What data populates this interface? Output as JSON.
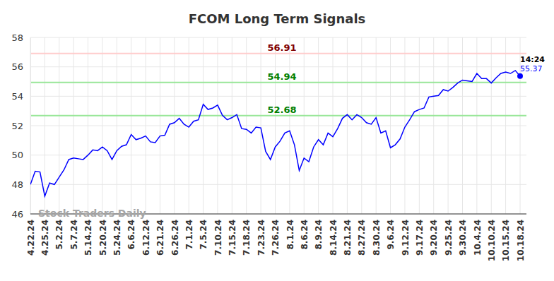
{
  "chart_data": {
    "type": "line",
    "title": "FCOM Long Term Signals",
    "categories": [
      "4.22.24",
      null,
      null,
      "4.25.24",
      null,
      null,
      "5.2.24",
      null,
      null,
      "5.7.24",
      null,
      null,
      "5.14.24",
      null,
      null,
      "5.20.24",
      null,
      null,
      "5.24.24",
      null,
      null,
      "6.6.24",
      null,
      null,
      "6.12.24",
      null,
      null,
      "6.21.24",
      null,
      null,
      "6.26.24",
      null,
      null,
      "7.1.24",
      null,
      null,
      "7.5.24",
      null,
      null,
      "7.10.24",
      null,
      null,
      "7.15.24",
      null,
      null,
      "7.18.24",
      null,
      null,
      "7.23.24",
      null,
      null,
      "7.26.24",
      null,
      null,
      "8.1.24",
      null,
      null,
      "8.6.24",
      null,
      null,
      "8.9.24",
      null,
      null,
      "8.14.24",
      null,
      null,
      "8.21.24",
      null,
      null,
      "8.27.24",
      null,
      null,
      "8.30.24",
      null,
      null,
      "9.6.24",
      null,
      null,
      "9.12.24",
      null,
      null,
      "9.17.24",
      null,
      null,
      "9.20.24",
      null,
      null,
      "9.25.24",
      null,
      null,
      "9.30.24",
      null,
      null,
      "10.4.24",
      null,
      null,
      "10.10.24",
      null,
      null,
      "10.15.24",
      null,
      null,
      "10.18.24"
    ],
    "values": [
      48.0,
      48.9,
      48.85,
      47.2,
      48.1,
      48.0,
      48.5,
      49.0,
      49.7,
      49.8,
      49.75,
      49.7,
      50.0,
      50.35,
      50.3,
      50.55,
      50.3,
      49.7,
      50.3,
      50.6,
      50.7,
      51.4,
      51.05,
      51.15,
      51.3,
      50.9,
      50.85,
      51.3,
      51.35,
      52.1,
      52.2,
      52.5,
      52.1,
      51.9,
      52.3,
      52.4,
      53.45,
      53.1,
      53.2,
      53.4,
      52.7,
      52.4,
      52.55,
      52.75,
      51.8,
      51.75,
      51.5,
      51.9,
      51.85,
      50.25,
      49.7,
      50.55,
      50.95,
      51.5,
      51.65,
      50.7,
      48.95,
      49.8,
      49.55,
      50.55,
      51.05,
      50.7,
      51.5,
      51.25,
      51.8,
      52.5,
      52.75,
      52.4,
      52.75,
      52.55,
      52.2,
      52.1,
      52.55,
      51.5,
      51.65,
      50.5,
      50.7,
      51.1,
      51.9,
      52.4,
      52.95,
      53.1,
      53.2,
      53.95,
      54.0,
      54.05,
      54.45,
      54.35,
      54.6,
      54.9,
      55.1,
      55.05,
      55.0,
      55.55,
      55.2,
      55.2,
      54.9,
      55.25,
      55.55,
      55.65,
      55.55,
      55.75,
      55.37
    ],
    "color": "#0000ff",
    "ylim": [
      46,
      58
    ],
    "yticks": [
      46,
      48,
      50,
      52,
      54,
      56,
      58
    ],
    "grid": true,
    "reference_lines": [
      {
        "value": 56.91,
        "color": "#ffcccc"
      },
      {
        "value": 54.94,
        "color": "#99e699"
      },
      {
        "value": 52.68,
        "color": "#99e699"
      }
    ],
    "annotations": [
      "14:24",
      "55.37"
    ],
    "watermark": "Stock Traders Daily"
  }
}
